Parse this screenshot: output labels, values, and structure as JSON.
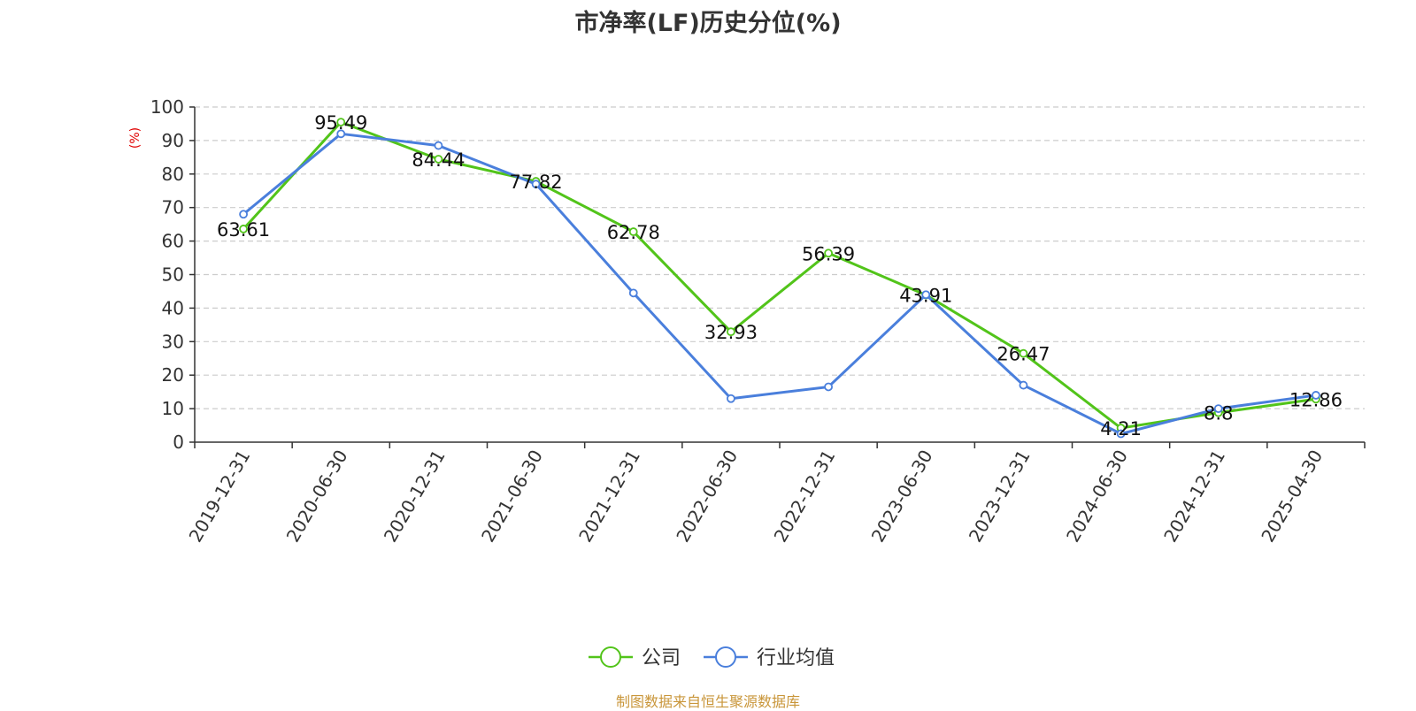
{
  "chart_data": {
    "type": "line",
    "title": "市净率(LF)历史分位(%)",
    "ylabel": "(%)",
    "ylim": [
      0,
      100
    ],
    "yticks": [
      0,
      10,
      20,
      30,
      40,
      50,
      60,
      70,
      80,
      90,
      100
    ],
    "categories": [
      "2019-12-31",
      "2020-06-30",
      "2020-12-31",
      "2021-06-30",
      "2021-12-31",
      "2022-06-30",
      "2022-12-31",
      "2023-06-30",
      "2023-12-31",
      "2024-06-30",
      "2024-12-31",
      "2025-04-30"
    ],
    "series": [
      {
        "name": "公司",
        "color": "#52c41a",
        "values": [
          63.61,
          95.49,
          84.44,
          77.82,
          62.78,
          32.93,
          56.39,
          43.91,
          26.47,
          4.21,
          8.8,
          12.86
        ],
        "labels": [
          "63.61",
          "95.49",
          "84.44",
          "77.82",
          "62.78",
          "32.93",
          "56.39",
          "43.91",
          "26.47",
          "4.21",
          "8.8",
          "12.86"
        ]
      },
      {
        "name": "行业均值",
        "color": "#4a7fdc",
        "values": [
          68,
          92,
          88.5,
          77,
          44.5,
          13,
          16.5,
          44,
          17,
          2.5,
          10,
          14
        ]
      }
    ],
    "grid": true,
    "legend": "bottom-center"
  },
  "source_note": "制图数据来自恒生聚源数据库"
}
